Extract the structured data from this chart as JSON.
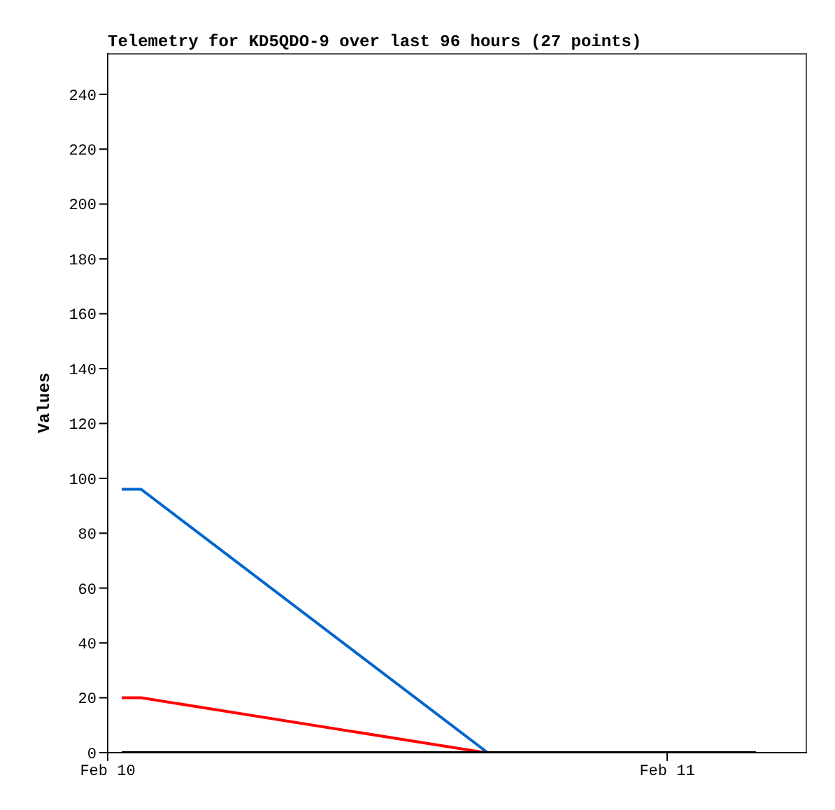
{
  "chart_data": {
    "type": "line",
    "title": "Telemetry for KD5QDO-9 over last 96 hours (27 points)",
    "ylabel": "Values",
    "xlim": [
      "--02-10T00:00",
      "--02-11T06:00"
    ],
    "xticks": [
      {
        "value": "--02-10",
        "label": "Feb 10"
      },
      {
        "value": "--02-11",
        "label": "Feb 11"
      }
    ],
    "ylim": [
      0,
      255
    ],
    "yticks": [
      0,
      20,
      40,
      60,
      80,
      100,
      120,
      140,
      160,
      180,
      200,
      220,
      240
    ],
    "grid": false,
    "marker": "none",
    "line_style": "solid",
    "series": [
      {
        "color": "#0066cc",
        "x": [
          "--02-10T00:36",
          "--02-10T01:26",
          "--02-10T16:18",
          "--02-11T03:48"
        ],
        "values": [
          96,
          96,
          0,
          0
        ]
      },
      {
        "color": "#ff0000",
        "x": [
          "--02-10T00:36",
          "--02-10T01:26",
          "--02-10T16:12",
          "--02-11T03:48"
        ],
        "values": [
          20,
          20,
          0,
          0
        ]
      },
      {
        "color": "#000000",
        "x": [
          "--02-10T00:36",
          "--02-11T03:48"
        ],
        "values": [
          0,
          0
        ]
      }
    ]
  }
}
